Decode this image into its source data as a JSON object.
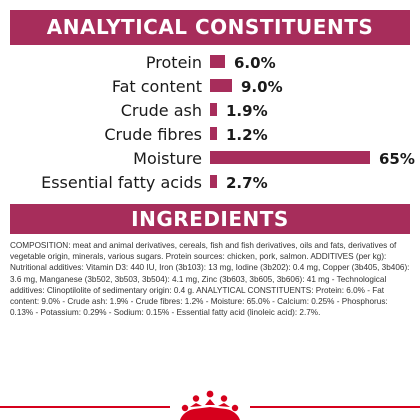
{
  "analytical": {
    "title": "ANALYTICAL CONSTITUENTS",
    "rows": [
      {
        "label": "Protein",
        "value": "6.0%",
        "percent": 6.0
      },
      {
        "label": "Fat content",
        "value": "9.0%",
        "percent": 9.0
      },
      {
        "label": "Crude ash",
        "value": "1.9%",
        "percent": 1.9
      },
      {
        "label": "Crude fibres",
        "value": "1.2%",
        "percent": 1.2
      },
      {
        "label": "Moisture",
        "value": "65%",
        "percent": 65
      },
      {
        "label": "Essential fatty acids",
        "value": "2.7%",
        "percent": 2.7
      }
    ]
  },
  "ingredients": {
    "title": "INGREDIENTS",
    "text": "COMPOSITION: meat and animal derivatives, cereals, fish and fish derivatives, oils and fats, derivatives of vegetable origin, minerals, various sugars. Protein sources: chicken, pork, salmon. ADDITIVES (per kg): Nutritional additives: Vitamin D3: 440 IU, Iron (3b103): 13 mg, Iodine (3b202): 0.4 mg, Copper (3b405, 3b406): 3.6 mg, Manganese (3b502, 3b503, 3b504): 4.1 mg, Zinc (3b603, 3b605, 3b606): 41 mg - Technological additives: Clinoptilolite of sedimentary origin: 0.4 g. ANALYTICAL CONSTITUENTS: Protein: 6.0% - Fat content: 9.0% - Crude ash: 1.9% - Crude fibres: 1.2% - Moisture: 65.0% - Calcium: 0.25% - Phosphorus: 0.13% - Potassium: 0.29% - Sodium: 0.15% - Essential fatty acid (linoleic acid): 2.7%."
  },
  "colors": {
    "accent": "#a72d5b",
    "footer_line": "#d6001c"
  },
  "logo_icon": "royal-canin-crown-icon"
}
